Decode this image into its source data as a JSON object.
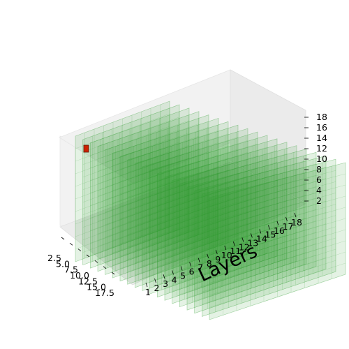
{
  "chart_data": {
    "type": "3d-voxel",
    "title": "",
    "xlabel": "Layers",
    "ylabel": "",
    "zlabel": "",
    "x_ticks": [
      "1",
      "2",
      "3",
      "4",
      "5",
      "6",
      "7",
      "8",
      "9",
      "10",
      "11",
      "12",
      "13",
      "14",
      "15",
      "16",
      "17",
      "18"
    ],
    "y_ticks": [
      "2.5",
      "5.0",
      "7.5",
      "10.0",
      "12.5",
      "15.0",
      "17.5"
    ],
    "z_ticks": [
      "2",
      "4",
      "6",
      "8",
      "10",
      "12",
      "14",
      "16",
      "18"
    ],
    "x_range": [
      0,
      19
    ],
    "y_range": [
      0,
      19
    ],
    "z_range": [
      0,
      19
    ],
    "layer_count": 19,
    "series": [
      {
        "values": "all cells filled",
        "color": "#2e9e2e"
      },
      {
        "values": [
          {
            "layer": 1,
            "y": 2,
            "z": 15
          }
        ],
        "color": "#cc2200"
      }
    ]
  }
}
